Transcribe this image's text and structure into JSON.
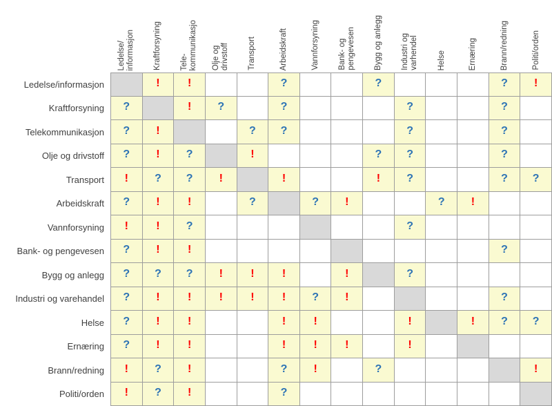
{
  "colors": {
    "cell_highlight_yellow": "#FAFAD1",
    "diagonal_gray": "#D9D9D9",
    "grid_border_gray": "#9C9C9C",
    "exclamation_red": "#FE0000",
    "question_blue": "#2E74B5",
    "label_text": "#3F3F3F"
  },
  "symbols": {
    "exclamation": "!",
    "question": "?"
  },
  "chart_data": {
    "type": "table",
    "layout": "dependency-matrix, 14 rows x 14 columns, diagonal cells gray, marked cells yellow",
    "column_headers": [
      "Ledelse/\ninformasjon",
      "Kraftforsyning",
      "Tele-\nkommunikasjo",
      "Olje og\ndrivstoff",
      "Transport",
      "Arbeidskraft",
      "Vannforsyning",
      "Bank- og\npengevesen",
      "Bygg og anlegg",
      "Industri og\nvarhendel",
      "Helse",
      "Ernæring",
      "Brann/redning",
      "Politi/orden"
    ],
    "row_headers": [
      "Ledelse/informasjon",
      "Kraftforsyning",
      "Telekommunikasjon",
      "Olje og drivstoff",
      "Transport",
      "Arbeidskraft",
      "Vannforsyning",
      "Bank- og pengevesen",
      "Bygg og anlegg",
      "Industri og varehandel",
      "Helse",
      "Ernæring",
      "Brann/redning",
      "Politi/orden"
    ],
    "cell_codes": {
      "D": "diagonal-gray-cell",
      "!": "red-exclamation-in-yellow-cell",
      "?": "blue-question-in-yellow-cell",
      "": "empty-white-cell"
    },
    "cells": [
      [
        "D",
        "!",
        "!",
        "",
        "",
        "?",
        "",
        "",
        "?",
        "",
        "",
        "",
        "?",
        "!"
      ],
      [
        "?",
        "D",
        "!",
        "?",
        "",
        "?",
        "",
        "",
        "",
        "?",
        "",
        "",
        "?",
        ""
      ],
      [
        "?",
        "!",
        "D",
        "",
        "?",
        "?",
        "",
        "",
        "",
        "?",
        "",
        "",
        "?",
        ""
      ],
      [
        "?",
        "!",
        "?",
        "D",
        "!",
        "",
        "",
        "",
        "?",
        "?",
        "",
        "",
        "?",
        ""
      ],
      [
        "!",
        "?",
        "?",
        "!",
        "D",
        "!",
        "",
        "",
        "!",
        "?",
        "",
        "",
        "?",
        "?"
      ],
      [
        "?",
        "!",
        "!",
        "",
        "?",
        "D",
        "?",
        "!",
        "",
        "",
        "?",
        "!",
        "",
        ""
      ],
      [
        "!",
        "!",
        "?",
        "",
        "",
        "",
        "D",
        "",
        "",
        "?",
        "",
        "",
        "",
        ""
      ],
      [
        "?",
        "!",
        "!",
        "",
        "",
        "",
        "",
        "D",
        "",
        "",
        "",
        "",
        "?",
        ""
      ],
      [
        "?",
        "?",
        "?",
        "!",
        "!",
        "!",
        "",
        "!",
        "D",
        "?",
        "",
        "",
        "",
        ""
      ],
      [
        "?",
        "!",
        "!",
        "!",
        "!",
        "!",
        "?",
        "!",
        "",
        "D",
        "",
        "",
        "?",
        ""
      ],
      [
        "?",
        "!",
        "!",
        "",
        "",
        "!",
        "!",
        "",
        "",
        "!",
        "D",
        "!",
        "?",
        "?"
      ],
      [
        "?",
        "!",
        "!",
        "",
        "",
        "!",
        "!",
        "!",
        "",
        "!",
        "",
        "D",
        "",
        ""
      ],
      [
        "!",
        "?",
        "!",
        "",
        "",
        "?",
        "!",
        "",
        "?",
        "",
        "",
        "",
        "D",
        "!"
      ],
      [
        "!",
        "?",
        "!",
        "",
        "",
        "?",
        "",
        "",
        "",
        "",
        "",
        "",
        "",
        "D"
      ]
    ]
  }
}
